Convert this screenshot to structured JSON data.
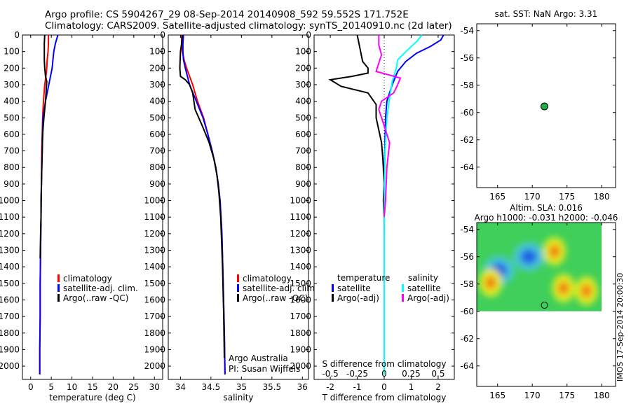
{
  "header": {
    "line1": "Argo profile: CS 5904267_29 08-Sep-2014 20140908_592 59.552S 171.752E",
    "line2": "Climatology: CARS2009. Satellite-adjusted climatology: synTS_20140910.nc (2d later)"
  },
  "stamp": "IMOS 17-Sep-2014 20:00:30",
  "colors": {
    "red": "#ff0000",
    "blue": "#0000ff",
    "black": "#000000",
    "cyan": "#00ffff",
    "magenta": "#ff00ff",
    "marker": "#22aa44"
  },
  "chart_data": [
    {
      "type": "line",
      "xlabel": "temperature (deg C)",
      "ylabel": "",
      "xlim": [
        -2,
        32
      ],
      "ylim": [
        2080,
        0
      ],
      "xticks": [
        0,
        5,
        10,
        15,
        20,
        25,
        30
      ],
      "yticks": [
        0,
        100,
        200,
        300,
        400,
        500,
        600,
        700,
        800,
        900,
        1000,
        1100,
        1200,
        1300,
        1400,
        1500,
        1600,
        1700,
        1800,
        1900,
        2000
      ],
      "legend": [
        "climatology",
        "satellite-adj. clim.",
        "Argo(..raw -QC)"
      ],
      "series": [
        {
          "name": "climatology",
          "color": "red",
          "x": [
            4.3,
            4.3,
            4.2,
            4.0,
            3.9,
            3.7,
            3.4,
            3.1,
            2.9,
            2.7,
            2.6,
            2.5,
            2.4,
            2.3,
            2.3,
            2.2,
            2.2
          ],
          "y": [
            0,
            50,
            100,
            150,
            200,
            250,
            300,
            400,
            500,
            700,
            900,
            1100,
            1300,
            1500,
            1700,
            1900,
            2050
          ]
        },
        {
          "name": "satellite-adj. clim.",
          "color": "blue",
          "x": [
            6.6,
            6.0,
            5.6,
            5.4,
            5.2,
            4.8,
            4.4,
            3.6,
            3.0,
            2.8,
            2.6,
            2.5,
            2.4,
            2.3,
            2.3,
            2.2,
            2.2
          ],
          "y": [
            0,
            50,
            100,
            150,
            200,
            250,
            300,
            400,
            500,
            700,
            900,
            1100,
            1300,
            1500,
            1700,
            1900,
            2050
          ]
        },
        {
          "name": "Argo(..raw -QC)",
          "color": "black",
          "x": [
            3.4,
            3.3,
            3.3,
            3.3,
            3.4,
            3.6,
            3.9,
            3.8,
            3.6,
            3.2,
            2.9,
            2.8,
            2.7,
            2.6,
            2.5,
            2.5,
            2.4,
            2.3
          ],
          "y": [
            0,
            50,
            100,
            150,
            200,
            250,
            280,
            320,
            400,
            500,
            600,
            700,
            800,
            900,
            1000,
            1100,
            1200,
            1350
          ]
        }
      ]
    },
    {
      "type": "line",
      "xlabel": "salinity",
      "xlim": [
        33.8,
        36.1
      ],
      "ylim": [
        2080,
        0
      ],
      "xticks": [
        34,
        34.5,
        35,
        35.5,
        36
      ],
      "yticks": [
        0,
        100,
        200,
        300,
        400,
        500,
        600,
        700,
        800,
        900,
        1000,
        1100,
        1200,
        1300,
        1400,
        1500,
        1600,
        1700,
        1800,
        1900,
        2000
      ],
      "legend": [
        "climatology",
        "satellite-adj. clim.",
        "Argo(..raw -QC)"
      ],
      "annotations": [
        "Argo Australia",
        "PI: Susan Wijffels"
      ],
      "series": [
        {
          "name": "climatology",
          "color": "red",
          "x": [
            34.02,
            34.02,
            34.03,
            34.06,
            34.1,
            34.2,
            34.28,
            34.38,
            34.45,
            34.52,
            34.58,
            34.62,
            34.65,
            34.68,
            34.7,
            34.72,
            34.73
          ],
          "y": [
            0,
            50,
            100,
            150,
            200,
            300,
            400,
            500,
            600,
            700,
            800,
            900,
            1000,
            1200,
            1500,
            1800,
            2050
          ]
        },
        {
          "name": "satellite-adj. clim.",
          "color": "blue",
          "x": [
            34.05,
            34.04,
            34.04,
            34.05,
            34.08,
            34.15,
            34.26,
            34.37,
            34.45,
            34.52,
            34.58,
            34.62,
            34.65,
            34.68,
            34.7,
            34.72,
            34.73
          ],
          "y": [
            0,
            50,
            100,
            150,
            200,
            300,
            400,
            500,
            600,
            700,
            800,
            900,
            1000,
            1200,
            1500,
            1800,
            2050
          ]
        },
        {
          "name": "Argo(..raw -QC)",
          "color": "black",
          "x": [
            34.03,
            34.02,
            34.0,
            33.99,
            34.0,
            34.08,
            34.15,
            34.2,
            34.24,
            34.36,
            34.47,
            34.55,
            34.6,
            34.63,
            34.66,
            34.69,
            34.71,
            34.72
          ],
          "y": [
            0,
            50,
            100,
            200,
            250,
            270,
            300,
            350,
            450,
            550,
            650,
            750,
            850,
            950,
            1100,
            1400,
            1700,
            1950
          ]
        }
      ]
    },
    {
      "type": "line",
      "xlabel": "T difference from climatology",
      "x2label": "S difference from climatology",
      "xlim": [
        -2.6,
        2.6
      ],
      "ylim": [
        2080,
        0
      ],
      "xticks": [
        -2,
        -1,
        0,
        1,
        2
      ],
      "x2ticks": [
        "-0.5",
        "-0.25",
        "0",
        "0.25",
        "0.5"
      ],
      "yticks": [
        0,
        100,
        200,
        300,
        400,
        500,
        600,
        700,
        800,
        900,
        1000,
        1100,
        1200,
        1300,
        1400,
        1500,
        1600,
        1700,
        1800,
        1900,
        2000
      ],
      "legend_left_title": "temperature",
      "legend_right_title": "salinity",
      "legend": [
        "satellite",
        "Argo(-adj)",
        "satellite",
        "Argo(-adj)"
      ],
      "series": [
        {
          "name": "satellite",
          "color": "blue",
          "x": [
            2.2,
            2.1,
            1.7,
            1.2,
            0.8,
            0.5,
            0.3,
            0.1,
            0.05,
            0.02,
            0,
            0,
            0,
            0,
            0
          ],
          "y": [
            0,
            30,
            70,
            110,
            160,
            220,
            300,
            400,
            500,
            700,
            900,
            1100,
            1500,
            1800,
            2050
          ]
        },
        {
          "name": "Argo(-adj)",
          "color": "black",
          "x": [
            -1.0,
            -0.9,
            -0.8,
            -0.6,
            -0.6,
            -1.2,
            -2.0,
            -1.6,
            -0.6,
            -0.3,
            -0.3,
            -0.1,
            -0.05,
            0,
            -0.03,
            0,
            0
          ],
          "y": [
            0,
            80,
            160,
            200,
            230,
            250,
            270,
            310,
            350,
            420,
            500,
            650,
            750,
            900,
            1000,
            1100,
            1350
          ]
        },
        {
          "name": "satellite",
          "color": "cyan",
          "x": [
            1.4,
            1.2,
            0.8,
            0.5,
            0.45,
            0.3,
            0.2,
            0.1,
            0.03,
            0.01,
            0,
            0,
            0
          ],
          "y": [
            0,
            40,
            100,
            150,
            200,
            280,
            380,
            500,
            700,
            900,
            1200,
            1600,
            2050
          ]
        },
        {
          "name": "Argo(-adj)",
          "color": "magenta",
          "x": [
            -0.2,
            -0.2,
            -0.1,
            -0.2,
            -0.3,
            0.6,
            0.5,
            0.35,
            -0.1,
            -0.2,
            -0.1,
            0.2,
            0.1,
            0.05,
            0
          ],
          "y": [
            0,
            60,
            120,
            170,
            220,
            260,
            300,
            350,
            400,
            450,
            500,
            650,
            800,
            1000,
            1100
          ]
        }
      ]
    },
    {
      "type": "scatter",
      "title": "sat. SST: NaN Argo: 3.31",
      "xlim": [
        162,
        182
      ],
      "ylim": [
        -65.5,
        -53.5
      ],
      "xticks": [
        165,
        170,
        175,
        180
      ],
      "yticks": [
        -54,
        -56,
        -58,
        -60,
        -62,
        -64
      ],
      "points": [
        {
          "x": 171.752,
          "y": -59.552
        }
      ]
    },
    {
      "type": "heatmap",
      "title": "Altim. SLA: 0.016",
      "subtitle": "Argo h1000: -0.031 h2000: -0.046",
      "xlim": [
        162,
        182
      ],
      "ylim": [
        -65.5,
        -53.5
      ],
      "data_extent": {
        "x": [
          162,
          180
        ],
        "y": [
          -60,
          -53.5
        ]
      },
      "xticks": [
        165,
        170,
        175,
        180
      ],
      "yticks": [
        -54,
        -56,
        -58,
        -60,
        -62,
        -64
      ],
      "features": [
        {
          "kind": "low",
          "x": 169.5,
          "y": -56.0
        },
        {
          "kind": "low",
          "x": 165.2,
          "y": -57.0
        },
        {
          "kind": "high",
          "x": 173.2,
          "y": -55.6
        },
        {
          "kind": "high",
          "x": 164.0,
          "y": -57.9
        },
        {
          "kind": "high",
          "x": 174.5,
          "y": -58.3
        },
        {
          "kind": "high",
          "x": 177.8,
          "y": -58.5
        }
      ],
      "points": [
        {
          "x": 171.752,
          "y": -59.552
        }
      ]
    }
  ]
}
